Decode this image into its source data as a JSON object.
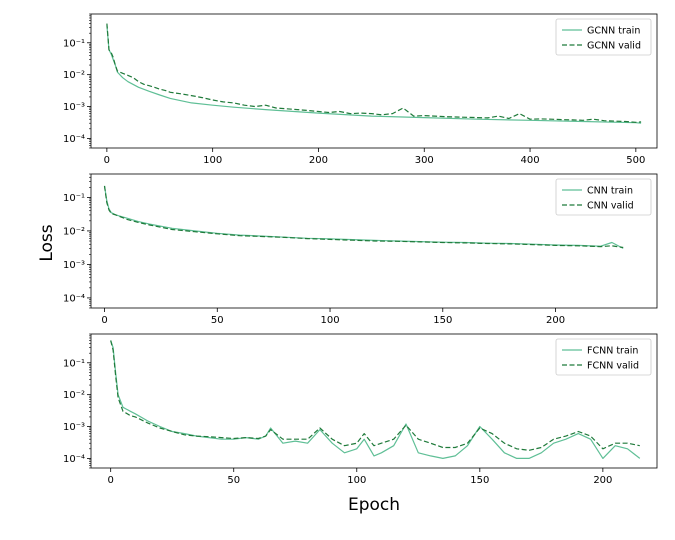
{
  "figure": {
    "xlabel": "Epoch",
    "ylabel": "Loss"
  },
  "colors": {
    "train": "#5fbf96",
    "valid": "#1f7a3a",
    "axis": "#000000"
  },
  "chart_data": [
    {
      "type": "line",
      "yscale": "log",
      "xlim": [
        -15,
        520
      ],
      "ylim": [
        5e-05,
        0.8
      ],
      "xticks": [
        0,
        100,
        200,
        300,
        400,
        500
      ],
      "yticks": [
        0.0001,
        0.001,
        0.01,
        0.1
      ],
      "ytick_labels": [
        "10⁻⁴",
        "10⁻³",
        "10⁻²",
        "10⁻¹"
      ],
      "legend_position": "upper right",
      "series": [
        {
          "name": "GCNN train",
          "style": "solid",
          "x": [
            0,
            2,
            4,
            6,
            8,
            10,
            15,
            20,
            30,
            40,
            50,
            60,
            80,
            100,
            120,
            150,
            200,
            250,
            300,
            350,
            400,
            450,
            500,
            505
          ],
          "y": [
            0.35,
            0.06,
            0.045,
            0.03,
            0.02,
            0.012,
            0.008,
            0.006,
            0.004,
            0.003,
            0.0023,
            0.0018,
            0.0013,
            0.0011,
            0.00095,
            0.0008,
            0.00062,
            0.0005,
            0.00045,
            0.0004,
            0.00037,
            0.00034,
            0.00031,
            0.0003
          ]
        },
        {
          "name": "GCNN valid",
          "style": "dashed",
          "x": [
            0,
            2,
            4,
            6,
            8,
            10,
            15,
            20,
            25,
            30,
            35,
            40,
            45,
            50,
            55,
            60,
            70,
            80,
            90,
            100,
            110,
            120,
            130,
            140,
            150,
            160,
            170,
            180,
            190,
            200,
            210,
            220,
            230,
            240,
            250,
            260,
            270,
            280,
            290,
            300,
            310,
            320,
            330,
            340,
            350,
            360,
            370,
            380,
            390,
            400,
            410,
            420,
            430,
            440,
            450,
            460,
            470,
            480,
            490,
            500,
            505
          ],
          "y": [
            0.4,
            0.06,
            0.05,
            0.035,
            0.02,
            0.013,
            0.011,
            0.0095,
            0.008,
            0.006,
            0.005,
            0.0045,
            0.004,
            0.0035,
            0.0032,
            0.0028,
            0.0025,
            0.0022,
            0.0019,
            0.0016,
            0.0014,
            0.0013,
            0.0011,
            0.001,
            0.0011,
            0.0009,
            0.00085,
            0.0008,
            0.00075,
            0.0007,
            0.00065,
            0.0007,
            0.0006,
            0.00062,
            0.0006,
            0.00055,
            0.0006,
            0.0009,
            0.0005,
            0.00052,
            0.0005,
            0.00048,
            0.00047,
            0.00046,
            0.00045,
            0.00044,
            0.0005,
            0.00042,
            0.0006,
            0.0004,
            0.00041,
            0.0004,
            0.00039,
            0.00038,
            0.00037,
            0.0004,
            0.00036,
            0.00035,
            0.00034,
            0.00032,
            0.00033
          ]
        }
      ]
    },
    {
      "type": "line",
      "yscale": "log",
      "xlim": [
        -6,
        245
      ],
      "ylim": [
        5e-05,
        0.5
      ],
      "xticks": [
        0,
        50,
        100,
        150,
        200
      ],
      "yticks": [
        0.0001,
        0.001,
        0.01,
        0.1
      ],
      "ytick_labels": [
        "10⁻⁴",
        "10⁻³",
        "10⁻²",
        "10⁻¹"
      ],
      "legend_position": "upper right",
      "series": [
        {
          "name": "CNN train",
          "style": "solid",
          "x": [
            0,
            1,
            2,
            3,
            5,
            10,
            15,
            20,
            30,
            40,
            50,
            60,
            70,
            80,
            90,
            100,
            110,
            120,
            130,
            140,
            150,
            160,
            170,
            180,
            190,
            200,
            210,
            220,
            225,
            230
          ],
          "y": [
            0.22,
            0.08,
            0.045,
            0.035,
            0.03,
            0.024,
            0.019,
            0.016,
            0.012,
            0.01,
            0.0085,
            0.0075,
            0.007,
            0.0065,
            0.006,
            0.0058,
            0.0055,
            0.0052,
            0.005,
            0.0048,
            0.0046,
            0.0045,
            0.0043,
            0.0042,
            0.004,
            0.0038,
            0.0037,
            0.0035,
            0.0045,
            0.003
          ]
        },
        {
          "name": "CNN valid",
          "style": "dashed",
          "x": [
            0,
            1,
            2,
            3,
            5,
            10,
            15,
            20,
            30,
            40,
            50,
            60,
            70,
            80,
            90,
            100,
            110,
            120,
            130,
            140,
            150,
            160,
            170,
            180,
            190,
            200,
            210,
            220,
            225,
            230
          ],
          "y": [
            0.22,
            0.07,
            0.042,
            0.033,
            0.03,
            0.022,
            0.018,
            0.015,
            0.011,
            0.0095,
            0.0082,
            0.0072,
            0.0068,
            0.0064,
            0.0059,
            0.0056,
            0.0053,
            0.005,
            0.0049,
            0.0047,
            0.0045,
            0.0044,
            0.0042,
            0.0041,
            0.0039,
            0.0037,
            0.0036,
            0.0034,
            0.0036,
            0.0032
          ]
        }
      ]
    },
    {
      "type": "line",
      "yscale": "log",
      "xlim": [
        -8,
        222
      ],
      "ylim": [
        5e-05,
        0.8
      ],
      "xticks": [
        0,
        50,
        100,
        150,
        200
      ],
      "yticks": [
        0.0001,
        0.001,
        0.01,
        0.1
      ],
      "ytick_labels": [
        "10⁻⁴",
        "10⁻³",
        "10⁻²",
        "10⁻¹"
      ],
      "legend_position": "upper right",
      "series": [
        {
          "name": "FCNN train",
          "style": "solid",
          "x": [
            0,
            1,
            2,
            3,
            5,
            8,
            10,
            15,
            20,
            25,
            30,
            35,
            40,
            45,
            50,
            55,
            60,
            63,
            65,
            70,
            75,
            80,
            85,
            90,
            95,
            100,
            103,
            107,
            110,
            115,
            120,
            125,
            130,
            135,
            140,
            145,
            150,
            155,
            160,
            165,
            170,
            175,
            180,
            185,
            190,
            195,
            200,
            205,
            210,
            215
          ],
          "y": [
            0.5,
            0.3,
            0.05,
            0.01,
            0.004,
            0.003,
            0.0025,
            0.0015,
            0.001,
            0.0007,
            0.0006,
            0.0005,
            0.00045,
            0.0004,
            0.0004,
            0.00045,
            0.0004,
            0.0005,
            0.0009,
            0.0003,
            0.00035,
            0.0003,
            0.0008,
            0.0003,
            0.00015,
            0.0002,
            0.0004,
            0.00012,
            0.00015,
            0.00025,
            0.0012,
            0.00015,
            0.00012,
            0.0001,
            0.00012,
            0.00025,
            0.001,
            0.0004,
            0.00015,
            0.0001,
            0.0001,
            0.00015,
            0.0003,
            0.0004,
            0.0006,
            0.0004,
            0.0001,
            0.00025,
            0.0002,
            0.0001
          ]
        },
        {
          "name": "FCNN valid",
          "style": "dashed",
          "x": [
            0,
            1,
            2,
            3,
            5,
            8,
            10,
            15,
            20,
            25,
            30,
            35,
            40,
            45,
            50,
            55,
            60,
            63,
            65,
            70,
            75,
            80,
            85,
            90,
            95,
            100,
            103,
            107,
            110,
            115,
            120,
            125,
            130,
            135,
            140,
            145,
            150,
            155,
            160,
            165,
            170,
            175,
            180,
            185,
            190,
            195,
            200,
            205,
            210,
            215
          ],
          "y": [
            0.5,
            0.25,
            0.04,
            0.008,
            0.003,
            0.0022,
            0.002,
            0.0013,
            0.0009,
            0.0007,
            0.00055,
            0.0005,
            0.00048,
            0.00045,
            0.00042,
            0.00045,
            0.00042,
            0.0005,
            0.0008,
            0.0004,
            0.0004,
            0.0004,
            0.0009,
            0.0004,
            0.00025,
            0.0003,
            0.0006,
            0.00025,
            0.0003,
            0.0004,
            0.0011,
            0.0004,
            0.0003,
            0.00022,
            0.00022,
            0.0003,
            0.0009,
            0.0006,
            0.0003,
            0.0002,
            0.00018,
            0.00022,
            0.0004,
            0.0005,
            0.0007,
            0.0005,
            0.0002,
            0.0003,
            0.0003,
            0.00025
          ]
        }
      ]
    }
  ]
}
